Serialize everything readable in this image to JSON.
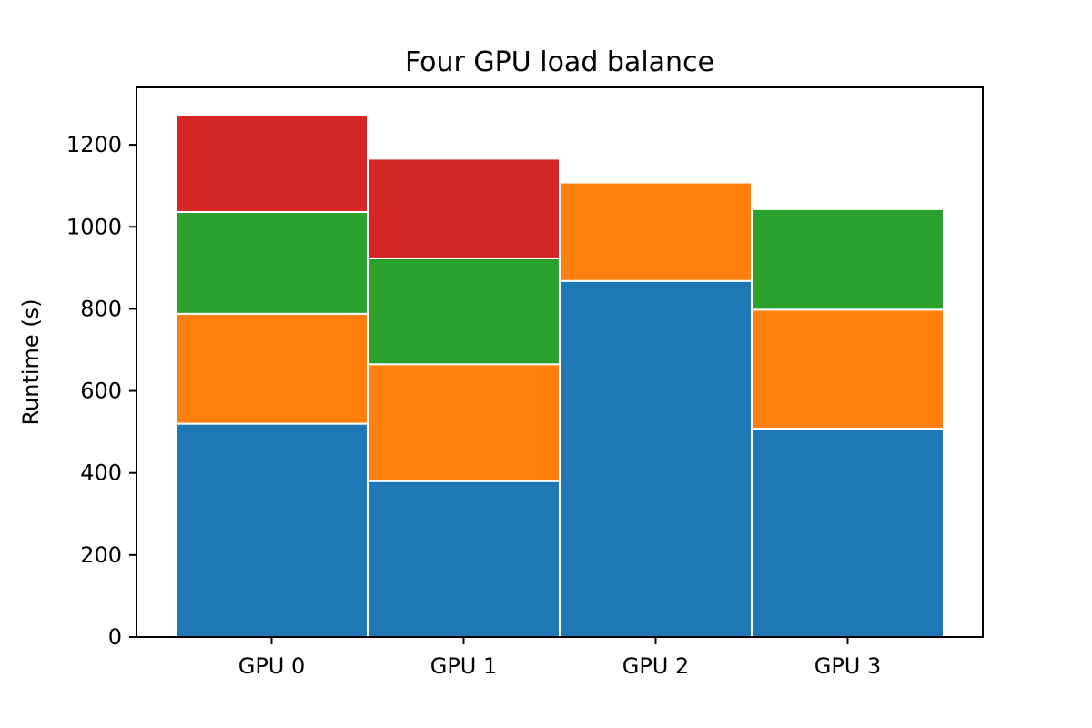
{
  "chart_data": {
    "type": "bar",
    "stacked": true,
    "title": "Four GPU  load balance",
    "xlabel": "",
    "ylabel": "Runtime (s)",
    "categories": [
      "GPU 0",
      "GPU 1",
      "GPU 2",
      "GPU 3"
    ],
    "ylim": [
      0,
      1340
    ],
    "yticks": [
      "0",
      "200",
      "400",
      "600",
      "800",
      "1000",
      "1200"
    ],
    "grid": false,
    "legend": "none",
    "colors": [
      "#1f77b4",
      "#ff7f0e",
      "#2ca02c",
      "#d62728"
    ],
    "series": [
      {
        "values": [
          520,
          380,
          868,
          508
        ]
      },
      {
        "values": [
          268,
          285,
          240,
          290
        ]
      },
      {
        "values": [
          248,
          258,
          0,
          245
        ]
      },
      {
        "values": [
          236,
          243,
          0,
          0
        ]
      }
    ]
  }
}
